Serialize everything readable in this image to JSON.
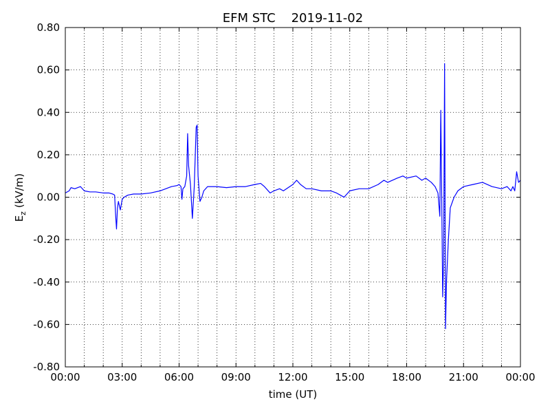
{
  "chart_data": {
    "type": "line",
    "title": "EFM STC    2019-11-02",
    "xlabel": "time (UT)",
    "ylabel": "E",
    "ylabel_sub": "z",
    "ylabel_unit": "(kV/m)",
    "x": [
      0.0,
      0.2,
      0.3,
      0.5,
      0.8,
      1.0,
      1.3,
      1.6,
      2.0,
      2.3,
      2.5,
      2.6,
      2.65,
      2.7,
      2.75,
      2.8,
      2.9,
      3.0,
      3.1,
      3.3,
      3.6,
      4.0,
      4.5,
      5.0,
      5.3,
      5.6,
      5.9,
      6.0,
      6.1,
      6.15,
      6.2,
      6.3,
      6.4,
      6.45,
      6.5,
      6.6,
      6.7,
      6.8,
      6.9,
      6.95,
      7.0,
      7.1,
      7.2,
      7.3,
      7.5,
      8.0,
      8.5,
      9.0,
      9.5,
      10.0,
      10.3,
      10.5,
      10.8,
      11.0,
      11.3,
      11.5,
      12.0,
      12.2,
      12.4,
      12.7,
      13.0,
      13.5,
      14.0,
      14.3,
      14.5,
      14.7,
      15.0,
      15.5,
      16.0,
      16.5,
      16.8,
      17.0,
      17.5,
      17.8,
      18.0,
      18.5,
      18.8,
      19.0,
      19.3,
      19.5,
      19.65,
      19.75,
      19.8,
      19.85,
      19.9,
      19.95,
      20.0,
      20.05,
      20.1,
      20.2,
      20.3,
      20.5,
      20.7,
      21.0,
      21.5,
      22.0,
      22.5,
      23.0,
      23.3,
      23.5,
      23.6,
      23.7,
      23.8,
      23.9,
      24.0
    ],
    "series": [
      {
        "name": "Ez",
        "color": "#0000ff",
        "values": [
          0.02,
          0.03,
          0.045,
          0.04,
          0.05,
          0.03,
          0.025,
          0.025,
          0.02,
          0.02,
          0.015,
          0.01,
          -0.08,
          -0.15,
          -0.05,
          -0.02,
          -0.06,
          -0.01,
          0.0,
          0.01,
          0.015,
          0.015,
          0.02,
          0.03,
          0.04,
          0.05,
          0.055,
          0.06,
          0.05,
          -0.01,
          0.04,
          0.05,
          0.1,
          0.3,
          0.15,
          0.06,
          -0.1,
          0.05,
          0.33,
          0.34,
          0.1,
          -0.02,
          0.0,
          0.03,
          0.05,
          0.05,
          0.045,
          0.05,
          0.05,
          0.06,
          0.065,
          0.05,
          0.02,
          0.03,
          0.04,
          0.03,
          0.06,
          0.08,
          0.06,
          0.04,
          0.04,
          0.03,
          0.03,
          0.02,
          0.01,
          0.0,
          0.03,
          0.04,
          0.04,
          0.06,
          0.08,
          0.07,
          0.09,
          0.1,
          0.09,
          0.1,
          0.08,
          0.09,
          0.07,
          0.05,
          0.02,
          -0.09,
          0.41,
          0.0,
          -0.47,
          -0.3,
          0.63,
          -0.62,
          -0.4,
          -0.2,
          -0.05,
          0.0,
          0.03,
          0.05,
          0.06,
          0.07,
          0.05,
          0.04,
          0.05,
          0.03,
          0.05,
          0.03,
          0.12,
          0.07,
          0.08
        ]
      }
    ],
    "xlim": [
      0,
      24
    ],
    "xticks": [
      {
        "value": 0,
        "label": "00:00"
      },
      {
        "value": 3,
        "label": "03:00"
      },
      {
        "value": 6,
        "label": "06:00"
      },
      {
        "value": 9,
        "label": "09:00"
      },
      {
        "value": 12,
        "label": "12:00"
      },
      {
        "value": 15,
        "label": "15:00"
      },
      {
        "value": 18,
        "label": "18:00"
      },
      {
        "value": 21,
        "label": "21:00"
      },
      {
        "value": 24,
        "label": "00:00"
      }
    ],
    "xminorticks": [
      1,
      2,
      4,
      5,
      7,
      8,
      10,
      11,
      13,
      14,
      16,
      17,
      19,
      20,
      22,
      23
    ],
    "ylim": [
      -0.8,
      0.8
    ],
    "yticks": [
      {
        "value": -0.8,
        "label": "-0.80"
      },
      {
        "value": -0.6,
        "label": "-0.60"
      },
      {
        "value": -0.4,
        "label": "-0.40"
      },
      {
        "value": -0.2,
        "label": "-0.20"
      },
      {
        "value": 0,
        "label": "0.00"
      },
      {
        "value": 0.2,
        "label": "0.20"
      },
      {
        "value": 0.4,
        "label": "0.40"
      },
      {
        "value": 0.6,
        "label": "0.60"
      },
      {
        "value": 0.8,
        "label": "0.80"
      }
    ],
    "grid": true
  }
}
